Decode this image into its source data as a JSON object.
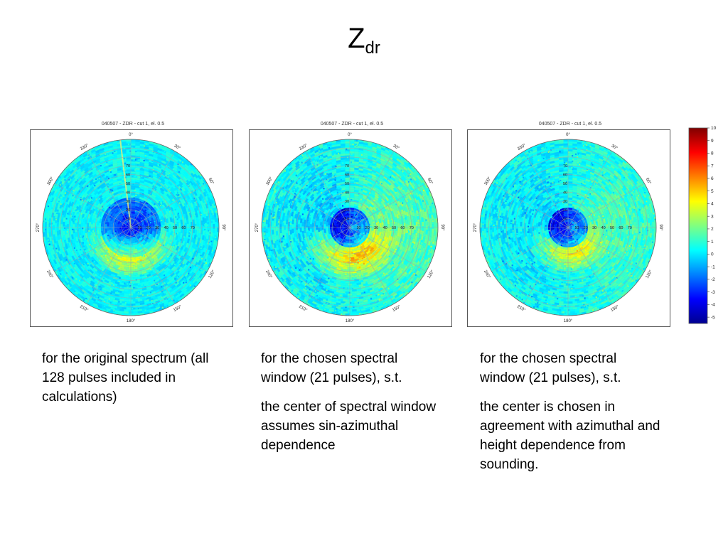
{
  "slide": {
    "title_main": "Z",
    "title_sub": "dr"
  },
  "panel_title": "040507 - ZDR - cut 1, el. 0.5",
  "azimuth_labels": [
    "0°",
    "30°",
    "60°",
    "90°",
    "120°",
    "150°",
    "180°",
    "210°",
    "240°",
    "270°",
    "300°",
    "330°"
  ],
  "range_labels": [
    "10",
    "20",
    "30",
    "40",
    "50",
    "60",
    "70"
  ],
  "chart_data": [
    {
      "type": "heatmap",
      "title": "040507 - ZDR - cut 1, el. 0.5",
      "projection": "polar",
      "azimuth_ticks_deg": [
        0,
        30,
        60,
        90,
        120,
        150,
        180,
        210,
        240,
        270,
        300,
        330
      ],
      "range_ticks": [
        10,
        20,
        30,
        40,
        50,
        60,
        70
      ],
      "colorbar": "colorbar"
    },
    {
      "type": "heatmap",
      "title": "040507 - ZDR - cut 1, el. 0.5",
      "projection": "polar",
      "azimuth_ticks_deg": [
        0,
        30,
        60,
        90,
        120,
        150,
        180,
        210,
        240,
        270,
        300,
        330
      ],
      "range_ticks": [
        10,
        20,
        30,
        40,
        50,
        60,
        70
      ],
      "colorbar": "colorbar"
    },
    {
      "type": "heatmap",
      "title": "040507 - ZDR - cut 1, el. 0.5",
      "projection": "polar",
      "azimuth_ticks_deg": [
        0,
        30,
        60,
        90,
        120,
        150,
        180,
        210,
        240,
        270,
        300,
        330
      ],
      "range_ticks": [
        10,
        20,
        30,
        40,
        50,
        60,
        70
      ],
      "colorbar": "colorbar"
    }
  ],
  "colorbar": {
    "ticks": [
      "10",
      "9",
      "8",
      "7",
      "6",
      "5",
      "4",
      "3",
      "2",
      "1",
      "0",
      "-1",
      "-2",
      "-3",
      "-4",
      "-5"
    ],
    "range": [
      -5.5,
      10
    ],
    "colors": [
      "#00008f",
      "#0000ff",
      "#0080ff",
      "#00ffff",
      "#80ff80",
      "#ffff00",
      "#ff8000",
      "#ff0000",
      "#800000"
    ]
  },
  "captions": [
    {
      "paragraphs": [
        "for the original spectrum (all 128 pulses included in calculations)"
      ]
    },
    {
      "paragraphs": [
        "for the chosen spectral window (21 pulses), s.t.",
        "the center of spectral window assumes sin-azimuthal dependence"
      ]
    },
    {
      "paragraphs": [
        "for the chosen spectral window (21 pulses), s.t.",
        "the center is chosen in agreement with azimuthal and height dependence from sounding."
      ]
    }
  ]
}
